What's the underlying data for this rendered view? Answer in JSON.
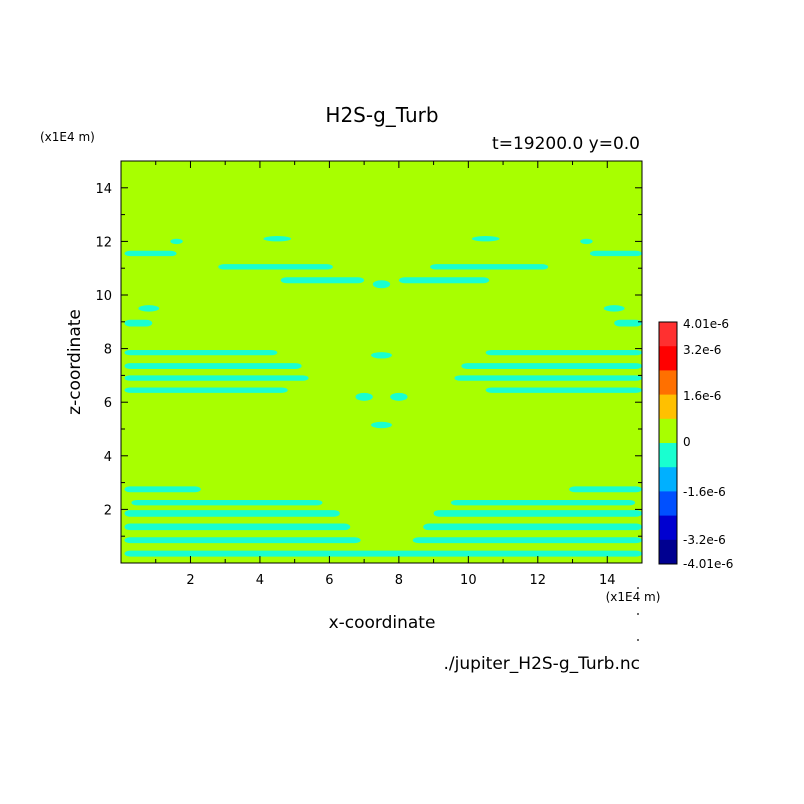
{
  "chart_data": {
    "type": "heatmap",
    "title": "H2S-g_Turb",
    "subtitle": "t=19200.0 y=0.0",
    "xlabel": "x-coordinate",
    "ylabel": "z-coordinate",
    "x_unit": "(x1E4 m)",
    "y_unit": "(x1E4 m)",
    "xlim": [
      0,
      15
    ],
    "ylim": [
      0,
      15
    ],
    "x_ticks": [
      "2",
      "4",
      "6",
      "8",
      "10",
      "12",
      "14"
    ],
    "y_ticks": [
      "2",
      "4",
      "6",
      "8",
      "10",
      "12",
      "14"
    ],
    "background_level": "0",
    "background_color": "#a8ff00",
    "contour_color": "#19ffd0",
    "colorbar": {
      "labels": [
        "4.01e-6",
        "3.2e-6",
        "1.6e-6",
        "0",
        "-1.6e-6",
        "-3.2e-6",
        "-4.01e-6"
      ],
      "colors_top_to_bottom": [
        "#ff3030",
        "#ff0000",
        "#ff7000",
        "#ffc000",
        "#a8ff00",
        "#19ffd0",
        "#00b0ff",
        "#0050ff",
        "#0000d0",
        "#000090"
      ]
    },
    "bands": [
      {
        "y": 0.35,
        "h": 0.22,
        "segments": [
          [
            0.1,
            15
          ]
        ]
      },
      {
        "y": 0.85,
        "h": 0.22,
        "segments": [
          [
            0.1,
            6.9
          ],
          [
            8.4,
            15
          ]
        ]
      },
      {
        "y": 1.35,
        "h": 0.25,
        "segments": [
          [
            0.1,
            6.6
          ],
          [
            8.7,
            15
          ]
        ]
      },
      {
        "y": 1.85,
        "h": 0.25,
        "segments": [
          [
            0.1,
            6.3
          ],
          [
            9.0,
            15
          ]
        ]
      },
      {
        "y": 2.25,
        "h": 0.2,
        "segments": [
          [
            0.3,
            5.8
          ],
          [
            9.5,
            14.8
          ]
        ]
      },
      {
        "y": 2.75,
        "h": 0.22,
        "segments": [
          [
            0.1,
            2.3
          ],
          [
            12.9,
            15
          ]
        ]
      },
      {
        "y": 6.45,
        "h": 0.2,
        "segments": [
          [
            0.1,
            4.8
          ],
          [
            10.5,
            15
          ]
        ]
      },
      {
        "y": 6.9,
        "h": 0.2,
        "segments": [
          [
            0.1,
            5.4
          ],
          [
            9.6,
            15
          ]
        ]
      },
      {
        "y": 7.35,
        "h": 0.22,
        "segments": [
          [
            0.1,
            5.2
          ],
          [
            9.8,
            15
          ]
        ]
      },
      {
        "y": 7.85,
        "h": 0.2,
        "segments": [
          [
            0.1,
            4.5
          ],
          [
            10.5,
            15
          ]
        ]
      },
      {
        "y": 8.95,
        "h": 0.25,
        "segments": [
          [
            0.1,
            0.9
          ],
          [
            14.2,
            15
          ]
        ]
      },
      {
        "y": 10.55,
        "h": 0.22,
        "segments": [
          [
            4.6,
            7.0
          ],
          [
            8.0,
            10.6
          ]
        ]
      },
      {
        "y": 11.05,
        "h": 0.2,
        "segments": [
          [
            2.8,
            6.1
          ],
          [
            8.9,
            12.3
          ]
        ]
      },
      {
        "y": 11.55,
        "h": 0.2,
        "segments": [
          [
            0.1,
            1.6
          ],
          [
            13.5,
            15
          ]
        ]
      }
    ],
    "blobs": [
      {
        "x": 7.5,
        "y": 5.15,
        "rx": 0.3,
        "ry": 0.12
      },
      {
        "x": 7.0,
        "y": 6.2,
        "rx": 0.25,
        "ry": 0.15
      },
      {
        "x": 8.0,
        "y": 6.2,
        "rx": 0.25,
        "ry": 0.15
      },
      {
        "x": 7.5,
        "y": 7.75,
        "rx": 0.3,
        "ry": 0.12
      },
      {
        "x": 7.5,
        "y": 10.4,
        "rx": 0.25,
        "ry": 0.15
      },
      {
        "x": 1.6,
        "y": 12.0,
        "rx": 0.18,
        "ry": 0.1
      },
      {
        "x": 13.4,
        "y": 12.0,
        "rx": 0.18,
        "ry": 0.1
      },
      {
        "x": 4.5,
        "y": 12.1,
        "rx": 0.4,
        "ry": 0.1
      },
      {
        "x": 10.5,
        "y": 12.1,
        "rx": 0.4,
        "ry": 0.1
      },
      {
        "x": 0.8,
        "y": 9.5,
        "rx": 0.3,
        "ry": 0.12
      },
      {
        "x": 14.2,
        "y": 9.5,
        "rx": 0.3,
        "ry": 0.12
      }
    ],
    "source": "./jupiter_H2S-g_Turb.nc"
  }
}
